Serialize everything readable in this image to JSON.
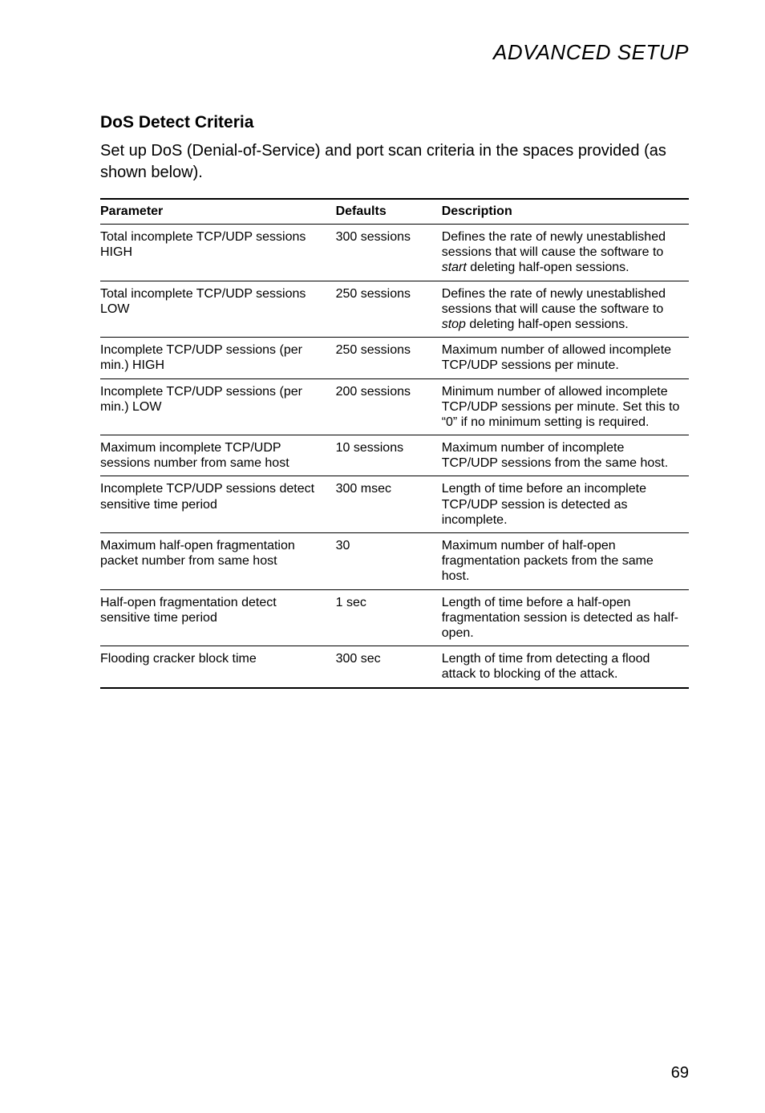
{
  "header": {
    "title": "ADVANCED SETUP"
  },
  "section": {
    "title": "DoS Detect Criteria",
    "intro": "Set up DoS (Denial-of-Service) and port scan criteria in the spaces provided (as shown below)."
  },
  "table": {
    "columns": [
      "Parameter",
      "Defaults",
      "Description"
    ],
    "col_widths_pct": [
      40,
      18,
      42
    ],
    "header_fontsize": 16,
    "cell_fontsize": 16,
    "border_color": "#000000",
    "rows": [
      {
        "param": "Total incomplete TCP/UDP sessions HIGH",
        "default": "300 sessions",
        "desc_pre": "Defines the rate of newly unestablished sessions that will cause the software to ",
        "desc_em": "start",
        "desc_post": " deleting half-open sessions."
      },
      {
        "param": "Total incomplete TCP/UDP sessions LOW",
        "default": "250 sessions",
        "desc_pre": "Defines the rate of newly unestablished sessions that will cause the software to ",
        "desc_em": "stop",
        "desc_post": " deleting half-open sessions."
      },
      {
        "param": "Incomplete TCP/UDP sessions (per min.) HIGH",
        "default": "250 sessions",
        "desc_pre": "Maximum number of allowed incomplete TCP/UDP sessions per minute.",
        "desc_em": "",
        "desc_post": ""
      },
      {
        "param": "Incomplete TCP/UDP sessions (per min.) LOW",
        "default": "200 sessions",
        "desc_pre": "Minimum number of allowed incomplete TCP/UDP sessions per minute. Set this to “0” if no minimum setting is required.",
        "desc_em": "",
        "desc_post": ""
      },
      {
        "param": "Maximum incomplete TCP/UDP sessions number from same host",
        "default": "10 sessions",
        "desc_pre": "Maximum number of incomplete TCP/UDP sessions from the same host.",
        "desc_em": "",
        "desc_post": ""
      },
      {
        "param": "Incomplete TCP/UDP sessions detect sensitive time period",
        "default": "300 msec",
        "desc_pre": "Length of time before an incomplete TCP/UDP session is detected as incomplete.",
        "desc_em": "",
        "desc_post": ""
      },
      {
        "param": "Maximum half-open fragmentation packet number from same host",
        "default": "30",
        "desc_pre": "Maximum number of half-open fragmentation packets from the same host.",
        "desc_em": "",
        "desc_post": ""
      },
      {
        "param": "Half-open fragmentation detect sensitive time period",
        "default": "1 sec",
        "desc_pre": "Length of time before a half-open fragmentation session is detected as half-open.",
        "desc_em": "",
        "desc_post": ""
      },
      {
        "param": "Flooding cracker block time",
        "default": "300 sec",
        "desc_pre": "Length of time from detecting a flood attack to blocking of the attack.",
        "desc_em": "",
        "desc_post": ""
      }
    ]
  },
  "footer": {
    "page_number": "69"
  },
  "style": {
    "background_color": "#ffffff",
    "text_color": "#000000",
    "header_fontsize": 26,
    "section_title_fontsize": 21,
    "intro_fontsize": 20,
    "page_num_fontsize": 20
  }
}
